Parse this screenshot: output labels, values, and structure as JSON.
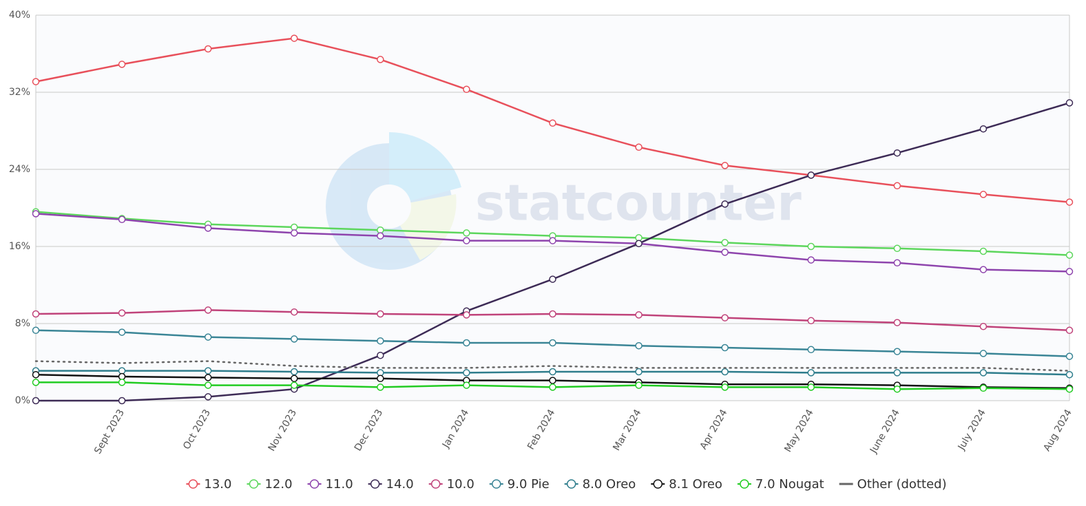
{
  "chart_data": {
    "type": "line",
    "watermark": "statcounter",
    "categories": [
      null,
      "Sept 2023",
      "Oct 2023",
      "Nov 2023",
      "Dec 2023",
      "Jan 2024",
      "Feb 2024",
      "Mar 2024",
      "Apr 2024",
      "May 2024",
      "June 2024",
      "July 2024",
      "Aug 2024"
    ],
    "ylim": [
      0,
      40
    ],
    "yticks": [
      {
        "value": 0,
        "label": "0%"
      },
      {
        "value": 8,
        "label": "8%"
      },
      {
        "value": 16,
        "label": "16%"
      },
      {
        "value": 24,
        "label": "24%"
      },
      {
        "value": 32,
        "label": "32%"
      },
      {
        "value": 40,
        "label": "40%"
      }
    ],
    "grid": true,
    "legend": "bottom",
    "series": [
      {
        "name": "13.0",
        "color": "#e8505b",
        "values": [
          33.1,
          34.9,
          36.5,
          37.6,
          35.4,
          32.3,
          28.8,
          26.3,
          24.4,
          23.4,
          22.3,
          21.4,
          20.6
        ]
      },
      {
        "name": "12.0",
        "color": "#5cd65c",
        "values": [
          19.6,
          18.9,
          18.3,
          18.0,
          17.7,
          17.4,
          17.1,
          16.9,
          16.4,
          16.0,
          15.8,
          15.5,
          15.1
        ]
      },
      {
        "name": "11.0",
        "color": "#8e44ad",
        "values": [
          19.4,
          18.8,
          17.9,
          17.4,
          17.1,
          16.6,
          16.6,
          16.3,
          15.4,
          14.6,
          14.3,
          13.6,
          13.4
        ]
      },
      {
        "name": "14.0",
        "color": "#3d2b56",
        "values": [
          0,
          0,
          0.4,
          1.2,
          4.7,
          9.3,
          12.6,
          16.3,
          20.4,
          23.4,
          25.7,
          28.2,
          30.9
        ]
      },
      {
        "name": "10.0",
        "color": "#c0437a",
        "values": [
          9.0,
          9.1,
          9.4,
          9.2,
          9.0,
          8.9,
          9.0,
          8.9,
          8.6,
          8.3,
          8.1,
          7.7,
          7.3
        ]
      },
      {
        "name": "9.0 Pie",
        "color": "#3a8596",
        "values": [
          7.3,
          7.1,
          6.6,
          6.4,
          6.2,
          6.0,
          6.0,
          5.7,
          5.5,
          5.3,
          5.1,
          4.9,
          4.6
        ]
      },
      {
        "name": "8.0 Oreo",
        "color": "#2e7d8c",
        "values": [
          3.1,
          3.1,
          3.1,
          3.0,
          2.9,
          2.9,
          3.0,
          3.0,
          3.0,
          2.9,
          2.9,
          2.9,
          2.7
        ]
      },
      {
        "name": "8.1 Oreo",
        "color": "#111111",
        "values": [
          2.7,
          2.5,
          2.4,
          2.3,
          2.3,
          2.1,
          2.1,
          1.9,
          1.7,
          1.7,
          1.6,
          1.4,
          1.3
        ]
      },
      {
        "name": "7.0 Nougat",
        "color": "#22cc22",
        "values": [
          1.9,
          1.9,
          1.6,
          1.6,
          1.4,
          1.6,
          1.4,
          1.6,
          1.4,
          1.4,
          1.2,
          1.3,
          1.2
        ]
      },
      {
        "name": "Other (dotted)",
        "color": "#666666",
        "dash": "dotted",
        "values": [
          4.1,
          3.9,
          4.1,
          3.6,
          3.4,
          3.4,
          3.6,
          3.4,
          3.4,
          3.4,
          3.4,
          3.4,
          3.1
        ]
      }
    ]
  }
}
